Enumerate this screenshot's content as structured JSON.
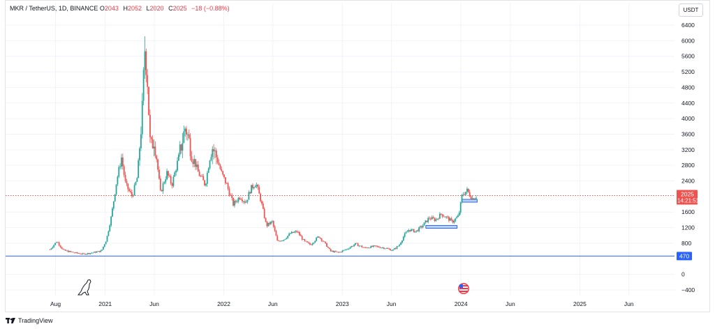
{
  "header": {
    "symbol": "MKR / TetherUS, 1D, BINANCE",
    "open_label": "O",
    "open_value": "2043",
    "high_label": "H",
    "high_value": "2052",
    "low_label": "L",
    "low_value": "2020",
    "close_label": "C",
    "close_value": "2025",
    "change_text": "−18 (−0.88%)"
  },
  "toolbar": {
    "currency_label": "USDT"
  },
  "footer": {
    "brand_label": "TradingView"
  },
  "price_badge": {
    "price": "2025",
    "countdown": "14:21:51"
  },
  "level_badge": {
    "value": "470"
  },
  "colors": {
    "up": "#26a69a",
    "down": "#ef5350",
    "price_line": "#ef5350",
    "level_line": "#2962ff",
    "grid": "#f0f3fa",
    "axis_text": "#131722",
    "zone_fill": "#bbd4fb",
    "zone_border": "#2962ff"
  },
  "icons": {
    "event_marker": "us-flag-earnings-icon",
    "dino": "dinosaur-icon"
  },
  "chart_data": {
    "type": "candlestick",
    "title": "MKR / TetherUS, 1D, BINANCE",
    "y_ticks": [
      6400,
      6000,
      5600,
      5200,
      4800,
      4400,
      4000,
      3600,
      3200,
      2800,
      2400,
      1600,
      1200,
      800,
      0,
      -400
    ],
    "ylim": [
      -400,
      6400
    ],
    "x_ticks": [
      "Aug",
      "2021",
      "Jun",
      "2022",
      "Jun",
      "2023",
      "Jun",
      "2024",
      "Jun",
      "2025",
      "Jun"
    ],
    "x_tick_dates": [
      "2020-08-01",
      "2021-01-01",
      "2021-06-01",
      "2022-01-01",
      "2022-06-01",
      "2023-01-01",
      "2023-06-01",
      "2024-01-01",
      "2024-06-01",
      "2025-01-01",
      "2025-06-01"
    ],
    "xlim": [
      "2020-06-20",
      "2025-09-15"
    ],
    "horizontal_lines": [
      {
        "value": 470,
        "kind": "level"
      },
      {
        "value": 2025,
        "kind": "last-price"
      }
    ],
    "zones": [
      {
        "start": "2023-09-15",
        "end": "2023-12-20",
        "value": 1220
      },
      {
        "start": "2024-01-05",
        "end": "2024-02-20",
        "value": 1890
      }
    ],
    "price_path": [
      [
        "2020-07-15",
        640
      ],
      [
        "2020-08-05",
        850
      ],
      [
        "2020-08-25",
        620
      ],
      [
        "2020-09-25",
        560
      ],
      [
        "2020-10-25",
        520
      ],
      [
        "2020-11-25",
        560
      ],
      [
        "2020-12-20",
        600
      ],
      [
        "2021-01-05",
        900
      ],
      [
        "2021-01-20",
        1500
      ],
      [
        "2021-02-05",
        2400
      ],
      [
        "2021-02-20",
        3000
      ],
      [
        "2021-03-05",
        2300
      ],
      [
        "2021-03-25",
        2000
      ],
      [
        "2021-04-10",
        2500
      ],
      [
        "2021-04-25",
        4200
      ],
      [
        "2021-05-03",
        5800
      ],
      [
        "2021-05-10",
        5200
      ],
      [
        "2021-05-20",
        3200
      ],
      [
        "2021-06-01",
        3500
      ],
      [
        "2021-06-20",
        2100
      ],
      [
        "2021-07-10",
        2600
      ],
      [
        "2021-07-25",
        2300
      ],
      [
        "2021-08-15",
        3000
      ],
      [
        "2021-09-05",
        3800
      ],
      [
        "2021-09-25",
        3100
      ],
      [
        "2021-10-15",
        2600
      ],
      [
        "2021-11-05",
        2300
      ],
      [
        "2021-11-25",
        3300
      ],
      [
        "2021-12-10",
        3000
      ],
      [
        "2021-12-25",
        2600
      ],
      [
        "2022-01-10",
        2300
      ],
      [
        "2022-01-30",
        1800
      ],
      [
        "2022-02-20",
        2000
      ],
      [
        "2022-03-10",
        1850
      ],
      [
        "2022-03-25",
        2200
      ],
      [
        "2022-04-10",
        2350
      ],
      [
        "2022-04-25",
        1900
      ],
      [
        "2022-05-12",
        1250
      ],
      [
        "2022-05-30",
        1350
      ],
      [
        "2022-06-15",
        850
      ],
      [
        "2022-07-05",
        900
      ],
      [
        "2022-07-25",
        1050
      ],
      [
        "2022-08-15",
        1100
      ],
      [
        "2022-09-05",
        850
      ],
      [
        "2022-09-25",
        760
      ],
      [
        "2022-10-20",
        980
      ],
      [
        "2022-11-08",
        800
      ],
      [
        "2022-11-25",
        600
      ],
      [
        "2022-12-20",
        560
      ],
      [
        "2023-01-15",
        650
      ],
      [
        "2023-02-10",
        780
      ],
      [
        "2023-03-10",
        680
      ],
      [
        "2023-04-10",
        720
      ],
      [
        "2023-05-10",
        680
      ],
      [
        "2023-06-05",
        620
      ],
      [
        "2023-06-25",
        750
      ],
      [
        "2023-07-10",
        1000
      ],
      [
        "2023-07-25",
        1150
      ],
      [
        "2023-08-15",
        1100
      ],
      [
        "2023-09-05",
        1250
      ],
      [
        "2023-09-25",
        1450
      ],
      [
        "2023-10-15",
        1400
      ],
      [
        "2023-11-01",
        1550
      ],
      [
        "2023-11-20",
        1450
      ],
      [
        "2023-12-05",
        1350
      ],
      [
        "2023-12-25",
        1500
      ],
      [
        "2024-01-05",
        2050
      ],
      [
        "2024-01-20",
        2150
      ],
      [
        "2024-02-05",
        1950
      ],
      [
        "2024-02-20",
        2025
      ]
    ]
  }
}
